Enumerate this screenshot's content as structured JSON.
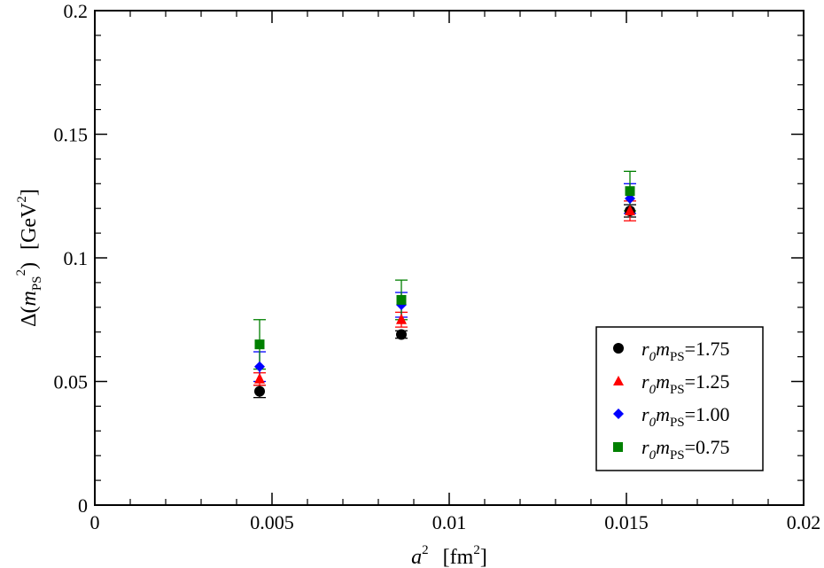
{
  "chart_data": {
    "type": "scatter",
    "xlabel": {
      "base": "a",
      "sup": "2",
      "unit_open": "[fm",
      "unit_sup": "2",
      "unit_close": "]"
    },
    "ylabel": {
      "delta": "Δ(",
      "m": "m",
      "sub": "PS",
      "sup": "2",
      "close": ")",
      "unit_open": "[GeV",
      "unit_sup": "2",
      "unit_close": "]"
    },
    "xlim": [
      0,
      0.02
    ],
    "ylim": [
      0,
      0.2
    ],
    "x_ticks": [
      0,
      0.005,
      0.01,
      0.015,
      0.02
    ],
    "x_tick_labels": [
      "0",
      "0.005",
      "0.01",
      "0.015",
      "0.02"
    ],
    "y_ticks": [
      0,
      0.05,
      0.1,
      0.15,
      0.2
    ],
    "y_tick_labels": [
      "0",
      "0.05",
      "0.1",
      "0.15",
      "0.2"
    ],
    "grid": false,
    "legend_position": "bottom-right",
    "series": [
      {
        "name": "r0mPS=1.75",
        "label_r": "r",
        "label_r_sub": "0",
        "label_m": "m",
        "label_m_sub": "PS",
        "label_value": "=1.75",
        "marker": "circle",
        "color": "#000000",
        "points": [
          {
            "x": 0.00465,
            "y": 0.046,
            "err": 0.0025
          },
          {
            "x": 0.00865,
            "y": 0.069,
            "err": 0.0015
          },
          {
            "x": 0.0151,
            "y": 0.119,
            "err": 0.0025
          }
        ]
      },
      {
        "name": "r0mPS=1.25",
        "label_r": "r",
        "label_r_sub": "0",
        "label_m": "m",
        "label_m_sub": "PS",
        "label_value": "=1.25",
        "marker": "triangle",
        "color": "#ff0000",
        "points": [
          {
            "x": 0.00465,
            "y": 0.051,
            "err": 0.0025
          },
          {
            "x": 0.00865,
            "y": 0.075,
            "err": 0.003
          },
          {
            "x": 0.0151,
            "y": 0.119,
            "err": 0.004
          }
        ]
      },
      {
        "name": "r0mPS=1.00",
        "label_r": "r",
        "label_r_sub": "0",
        "label_m": "m",
        "label_m_sub": "PS",
        "label_value": "=1.00",
        "marker": "diamond",
        "color": "#0000ff",
        "points": [
          {
            "x": 0.00465,
            "y": 0.056,
            "err": 0.006
          },
          {
            "x": 0.00865,
            "y": 0.081,
            "err": 0.005
          },
          {
            "x": 0.0151,
            "y": 0.124,
            "err": 0.006
          }
        ]
      },
      {
        "name": "r0mPS=0.75",
        "label_r": "r",
        "label_r_sub": "0",
        "label_m": "m",
        "label_m_sub": "PS",
        "label_value": "=0.75",
        "marker": "square",
        "color": "#008000",
        "points": [
          {
            "x": 0.00465,
            "y": 0.065,
            "err": 0.01
          },
          {
            "x": 0.00865,
            "y": 0.083,
            "err": 0.008
          },
          {
            "x": 0.0151,
            "y": 0.127,
            "err": 0.008
          }
        ]
      }
    ]
  }
}
